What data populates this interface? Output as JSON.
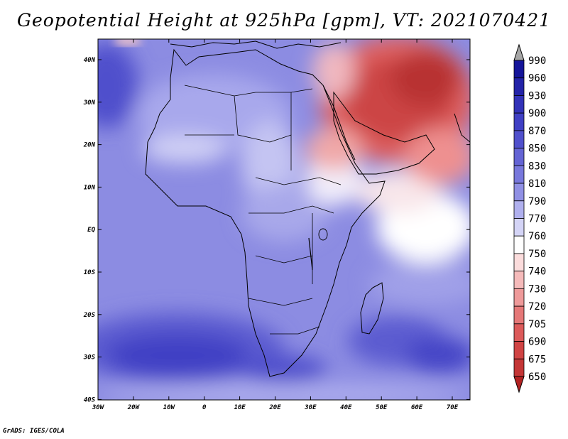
{
  "title": "Geopotential Height at 925hPa [gpm], VT: 2021070421",
  "credit": "GrADS: IGES/COLA",
  "map": {
    "lat_labels": [
      "40N",
      "30N",
      "20N",
      "10N",
      "EQ",
      "10S",
      "20S",
      "30S",
      "40S"
    ],
    "lon_labels": [
      "30W",
      "20W",
      "10W",
      "0",
      "10E",
      "20E",
      "30E",
      "40E",
      "50E",
      "60E",
      "70E"
    ],
    "lon_range": [
      -30,
      75
    ],
    "lat_range": [
      -40,
      45
    ]
  },
  "colorbar": {
    "levels": [
      {
        "label": "990",
        "color": "#15159a"
      },
      {
        "label": "960",
        "color": "#2323a8"
      },
      {
        "label": "930",
        "color": "#3232b8"
      },
      {
        "label": "900",
        "color": "#4040c4"
      },
      {
        "label": "870",
        "color": "#5050cc"
      },
      {
        "label": "850",
        "color": "#6464d4"
      },
      {
        "label": "830",
        "color": "#7878dc"
      },
      {
        "label": "810",
        "color": "#9090e4"
      },
      {
        "label": "790",
        "color": "#b0b0ee"
      },
      {
        "label": "770",
        "color": "#d4d4f6"
      },
      {
        "label": "760",
        "color": "#ffffff"
      },
      {
        "label": "750",
        "color": "#fbdcdc"
      },
      {
        "label": "740",
        "color": "#f5baba"
      },
      {
        "label": "730",
        "color": "#ee9a9a"
      },
      {
        "label": "720",
        "color": "#e57878"
      },
      {
        "label": "705",
        "color": "#dc5a5a"
      },
      {
        "label": "690",
        "color": "#d04444"
      },
      {
        "label": "675",
        "color": "#c43636"
      },
      {
        "label": "650",
        "color": "#b22a2a"
      }
    ],
    "over_color": "#a6a6a6",
    "under_color": "#b22222"
  }
}
